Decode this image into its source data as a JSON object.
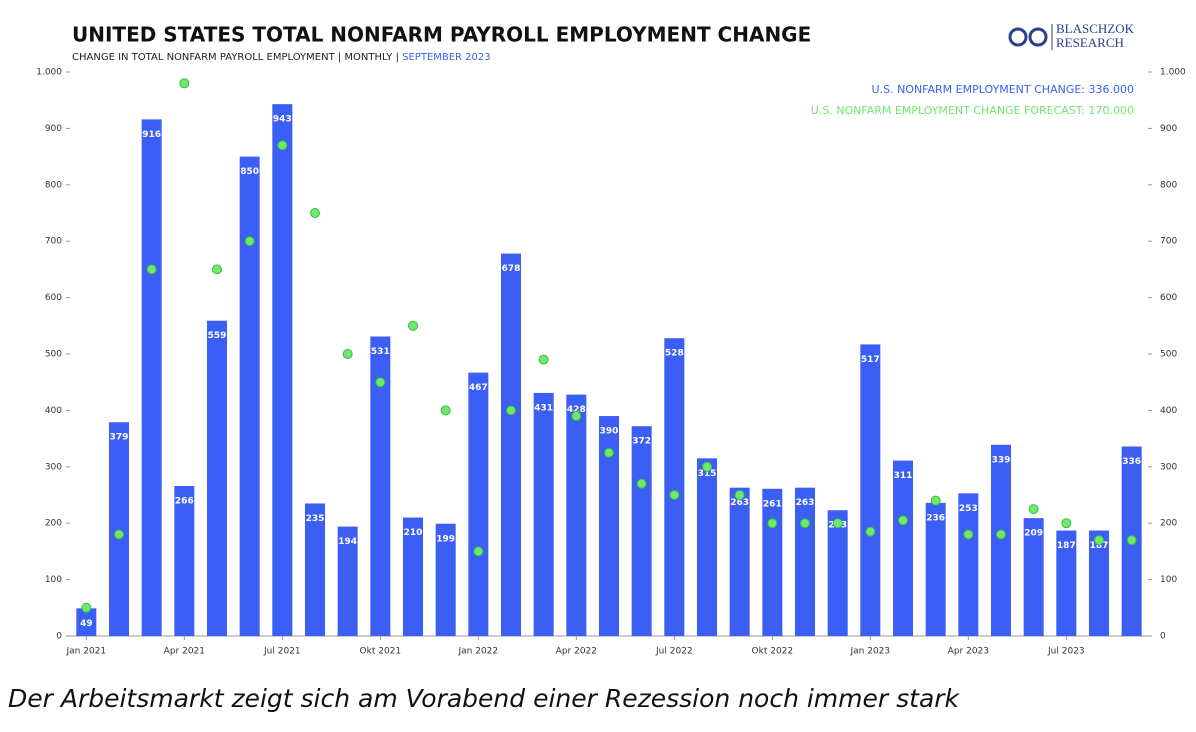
{
  "chart_data": {
    "type": "bar",
    "title": "UNITED STATES TOTAL NONFARM PAYROLL EMPLOYMENT CHANGE",
    "subtitle": "CHANGE IN TOTAL NONFARM PAYROLL EMPLOYMENT | MONTHLY | ",
    "subtitle_date": "SEPTEMBER 2023",
    "logo": [
      "BLASCHZOK",
      "RESEARCH"
    ],
    "categories": [
      "Jan 2021",
      null,
      null,
      "Apr 2021",
      null,
      null,
      "Jul 2021",
      null,
      null,
      "Okt 2021",
      null,
      null,
      "Jan 2022",
      null,
      null,
      "Apr 2022",
      null,
      null,
      "Jul 2022",
      null,
      null,
      "Okt 2022",
      null,
      null,
      "Jan 2023",
      null,
      null,
      "Apr 2023",
      null,
      null,
      "Jul 2023",
      null,
      null
    ],
    "series": [
      {
        "name": "U.S. NONFARM EMPLOYMENT CHANGE: 336.000",
        "color": "#3b5ff5",
        "kind": "bar",
        "values": [
          49,
          379,
          916,
          266,
          559,
          850,
          943,
          235,
          194,
          531,
          210,
          199,
          467,
          678,
          431,
          428,
          390,
          372,
          528,
          315,
          263,
          261,
          263,
          223,
          517,
          311,
          236,
          253,
          339,
          209,
          187,
          187,
          336
        ]
      },
      {
        "name": "U.S. NONFARM EMPLOYMENT CHANGE FORECAST: 170.000",
        "color": "#6ee86e",
        "kind": "scatter",
        "values": [
          50,
          180,
          650,
          980,
          650,
          700,
          870,
          750,
          500,
          450,
          550,
          400,
          150,
          400,
          490,
          390,
          325,
          270,
          250,
          300,
          250,
          200,
          200,
          200,
          185,
          205,
          240,
          180,
          180,
          225,
          200,
          170,
          170
        ]
      }
    ],
    "ylim": [
      0,
      1000
    ],
    "yticks": [
      0,
      100,
      200,
      300,
      400,
      500,
      600,
      700,
      800,
      900,
      {
        "value": 1000,
        "label": "1.000"
      }
    ],
    "legend": "top-right"
  },
  "caption": "Der Arbeitsmarkt zeigt sich am Vorabend einer Rezession noch immer stark"
}
